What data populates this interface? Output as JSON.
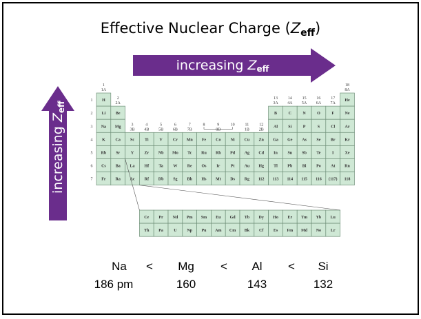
{
  "title": {
    "text": "Effective Nuclear Charge (",
    "symbol": "Z",
    "sub": "eff",
    "close": ")"
  },
  "arrows": {
    "horizontal": {
      "text": "increasing ",
      "symbol": "Z",
      "sub": "eff"
    },
    "vertical": {
      "text": "increasing ",
      "symbol": "Z",
      "sub": "eff"
    }
  },
  "colors": {
    "arrow": "#6a2d8c",
    "cell_fill": "#cfe8d5",
    "cell_border": "#6f8f78"
  },
  "periodic_table": {
    "group_labels": [
      "1",
      "1A",
      "2",
      "2A",
      "3",
      "3B",
      "4",
      "4B",
      "5",
      "5B",
      "6",
      "6B",
      "7",
      "7B",
      "8",
      "8B",
      "9",
      "10",
      "11",
      "1B",
      "12",
      "2B",
      "13",
      "3A",
      "14",
      "4A",
      "15",
      "5A",
      "16",
      "6A",
      "17",
      "7A",
      "18",
      "8A"
    ],
    "period_labels": [
      "1",
      "2",
      "3",
      "4",
      "5",
      "6",
      "7"
    ],
    "elements": [
      [
        "H",
        "He"
      ],
      [
        "Li",
        "Be",
        "B",
        "C",
        "N",
        "O",
        "F",
        "Ne"
      ],
      [
        "Na",
        "Mg",
        "Al",
        "Si",
        "P",
        "S",
        "Cl",
        "Ar"
      ],
      [
        "K",
        "Ca",
        "Sc",
        "Ti",
        "V",
        "Cr",
        "Mn",
        "Fe",
        "Co",
        "Ni",
        "Cu",
        "Zn",
        "Ga",
        "Ge",
        "As",
        "Se",
        "Br",
        "Kr"
      ],
      [
        "Rb",
        "Sr",
        "Y",
        "Zr",
        "Nb",
        "Mo",
        "Tc",
        "Ru",
        "Rh",
        "Pd",
        "Ag",
        "Cd",
        "In",
        "Sn",
        "Sb",
        "Te",
        "I",
        "Xe"
      ],
      [
        "Cs",
        "Ba",
        "La",
        "Hf",
        "Ta",
        "W",
        "Re",
        "Os",
        "Ir",
        "Pt",
        "Au",
        "Hg",
        "Tl",
        "Pb",
        "Bi",
        "Po",
        "At",
        "Rn"
      ],
      [
        "Fr",
        "Ra",
        "Ac",
        "Rf",
        "Db",
        "Sg",
        "Bh",
        "Hs",
        "Mt",
        "Ds",
        "Rg",
        "112",
        "113",
        "114",
        "115",
        "116",
        "(117)",
        "118"
      ]
    ],
    "lanthanides": [
      "Ce",
      "Pr",
      "Nd",
      "Pm",
      "Sm",
      "Eu",
      "Gd",
      "Tb",
      "Dy",
      "Ho",
      "Er",
      "Tm",
      "Yb",
      "Lu"
    ],
    "actinides": [
      "Th",
      "Pa",
      "U",
      "Np",
      "Pu",
      "Am",
      "Cm",
      "Bk",
      "Cf",
      "Es",
      "Fm",
      "Md",
      "No",
      "Lr"
    ]
  },
  "comparison": {
    "symbols": [
      "Na",
      "<",
      "Mg",
      "<",
      "Al",
      "<",
      "Si"
    ],
    "radii": [
      "186 pm",
      "160",
      "143",
      "132"
    ]
  }
}
